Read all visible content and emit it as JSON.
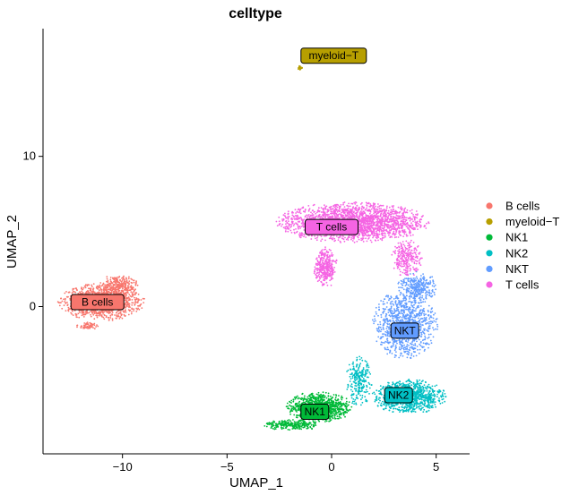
{
  "chart_data": {
    "type": "scatter",
    "title": "celltype",
    "xlabel": "UMAP_1",
    "ylabel": "UMAP_2",
    "xlim": [
      -13.8,
      6.6
    ],
    "ylim": [
      -9.8,
      18.5
    ],
    "xticks": [
      -10,
      -5,
      0,
      5
    ],
    "yticks": [
      0,
      10
    ],
    "grid": false,
    "legend_position": "right",
    "series": [
      {
        "name": "B cells",
        "color": "#F8766D",
        "label_pos": [
          -11.2,
          0.3
        ],
        "blobs": [
          {
            "cx": -11.0,
            "cy": 0.3,
            "rx": 2.0,
            "ry": 1.2,
            "n": 1100
          },
          {
            "cx": -10.2,
            "cy": 1.4,
            "rx": 0.9,
            "ry": 0.7,
            "n": 250
          },
          {
            "cx": -11.7,
            "cy": -1.3,
            "rx": 0.5,
            "ry": 0.25,
            "n": 60
          }
        ]
      },
      {
        "name": "myeloid−T",
        "color": "#B79F00",
        "label_pos": [
          0.1,
          16.7
        ],
        "blobs": [
          {
            "cx": -1.5,
            "cy": 15.9,
            "rx": 0.12,
            "ry": 0.15,
            "n": 25
          }
        ]
      },
      {
        "name": "NK1",
        "color": "#00BA38",
        "label_pos": [
          -0.8,
          -7.0
        ],
        "blobs": [
          {
            "cx": -0.6,
            "cy": -6.7,
            "rx": 1.5,
            "ry": 1.0,
            "n": 900
          },
          {
            "cx": -1.9,
            "cy": -7.9,
            "rx": 1.3,
            "ry": 0.35,
            "n": 250
          }
        ]
      },
      {
        "name": "NK2",
        "color": "#00BFC4",
        "label_pos": [
          3.2,
          -5.9
        ],
        "blobs": [
          {
            "cx": 3.7,
            "cy": -6.0,
            "rx": 1.7,
            "ry": 1.1,
            "n": 1000
          },
          {
            "cx": 1.3,
            "cy": -5.0,
            "rx": 0.6,
            "ry": 1.6,
            "n": 250
          }
        ]
      },
      {
        "name": "NKT",
        "color": "#619CFF",
        "label_pos": [
          3.5,
          -1.6
        ],
        "blobs": [
          {
            "cx": 3.5,
            "cy": -1.2,
            "rx": 1.5,
            "ry": 2.2,
            "n": 1000
          },
          {
            "cx": 4.1,
            "cy": 1.3,
            "rx": 0.9,
            "ry": 1.0,
            "n": 300
          }
        ]
      },
      {
        "name": "T cells",
        "color": "#F564E3",
        "label_pos": [
          0.0,
          5.3
        ],
        "blobs": [
          {
            "cx": 1.0,
            "cy": 5.6,
            "rx": 3.5,
            "ry": 1.3,
            "n": 2200
          },
          {
            "cx": -0.3,
            "cy": 2.6,
            "rx": 0.55,
            "ry": 1.3,
            "n": 350
          },
          {
            "cx": 3.6,
            "cy": 3.2,
            "rx": 0.7,
            "ry": 1.2,
            "n": 250
          }
        ]
      }
    ]
  }
}
